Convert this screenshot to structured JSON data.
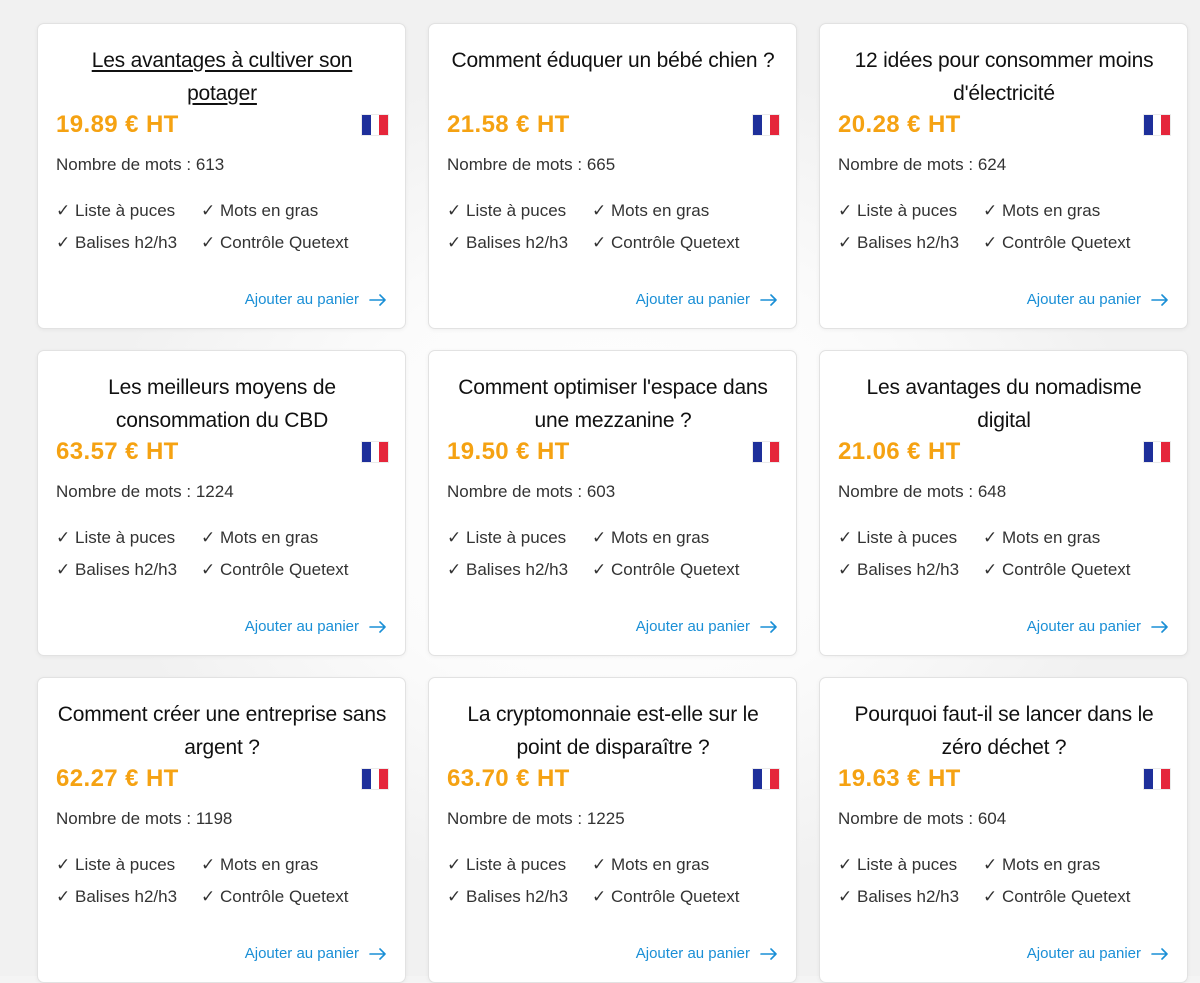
{
  "colors": {
    "price": "#f5a212",
    "link": "#1a8fd6",
    "flag_blue": "#1e2f9a",
    "flag_white": "#ffffff",
    "flag_red": "#e5263b"
  },
  "check_mark": "✓",
  "cards": [
    {
      "title": "Les avantages à cultiver son potager",
      "price": "19.89 € HT",
      "word_count_label": "Nombre de mots : 613",
      "features": [
        "Liste à puces",
        "Mots en gras",
        "Balises h2/h3",
        "Contrôle Quetext"
      ],
      "cta": "Ajouter au panier",
      "flag_icon": "flag-france-icon"
    },
    {
      "title": "Comment éduquer un bébé chien ?",
      "price": "21.58 € HT",
      "word_count_label": "Nombre de mots : 665",
      "features": [
        "Liste à puces",
        "Mots en gras",
        "Balises h2/h3",
        "Contrôle Quetext"
      ],
      "cta": "Ajouter au panier",
      "flag_icon": "flag-france-icon"
    },
    {
      "title": "12 idées pour consommer moins d'électricité",
      "price": "20.28 € HT",
      "word_count_label": "Nombre de mots : 624",
      "features": [
        "Liste à puces",
        "Mots en gras",
        "Balises h2/h3",
        "Contrôle Quetext"
      ],
      "cta": "Ajouter au panier",
      "flag_icon": "flag-france-icon"
    },
    {
      "title": "Les meilleurs moyens de consommation du CBD",
      "price": "63.57 € HT",
      "word_count_label": "Nombre de mots : 1224",
      "features": [
        "Liste à puces",
        "Mots en gras",
        "Balises h2/h3",
        "Contrôle Quetext"
      ],
      "cta": "Ajouter au panier",
      "flag_icon": "flag-france-icon"
    },
    {
      "title": "Comment optimiser l'espace dans une mezzanine ?",
      "price": "19.50 € HT",
      "word_count_label": "Nombre de mots : 603",
      "features": [
        "Liste à puces",
        "Mots en gras",
        "Balises h2/h3",
        "Contrôle Quetext"
      ],
      "cta": "Ajouter au panier",
      "flag_icon": "flag-france-icon"
    },
    {
      "title": "Les avantages du nomadisme digital",
      "price": "21.06 € HT",
      "word_count_label": "Nombre de mots : 648",
      "features": [
        "Liste à puces",
        "Mots en gras",
        "Balises h2/h3",
        "Contrôle Quetext"
      ],
      "cta": "Ajouter au panier",
      "flag_icon": "flag-france-icon"
    },
    {
      "title": "Comment créer une entreprise sans argent ?",
      "price": "62.27 € HT",
      "word_count_label": "Nombre de mots : 1198",
      "features": [
        "Liste à puces",
        "Mots en gras",
        "Balises h2/h3",
        "Contrôle Quetext"
      ],
      "cta": "Ajouter au panier",
      "flag_icon": "flag-france-icon"
    },
    {
      "title": "La cryptomonnaie est-elle sur le point de disparaître ?",
      "price": "63.70 € HT",
      "word_count_label": "Nombre de mots : 1225",
      "features": [
        "Liste à puces",
        "Mots en gras",
        "Balises h2/h3",
        "Contrôle Quetext"
      ],
      "cta": "Ajouter au panier",
      "flag_icon": "flag-france-icon"
    },
    {
      "title": "Pourquoi faut-il se lancer dans le zéro déchet ?",
      "price": "19.63 € HT",
      "word_count_label": "Nombre de mots : 604",
      "features": [
        "Liste à puces",
        "Mots en gras",
        "Balises h2/h3",
        "Contrôle Quetext"
      ],
      "cta": "Ajouter au panier",
      "flag_icon": "flag-france-icon"
    }
  ]
}
